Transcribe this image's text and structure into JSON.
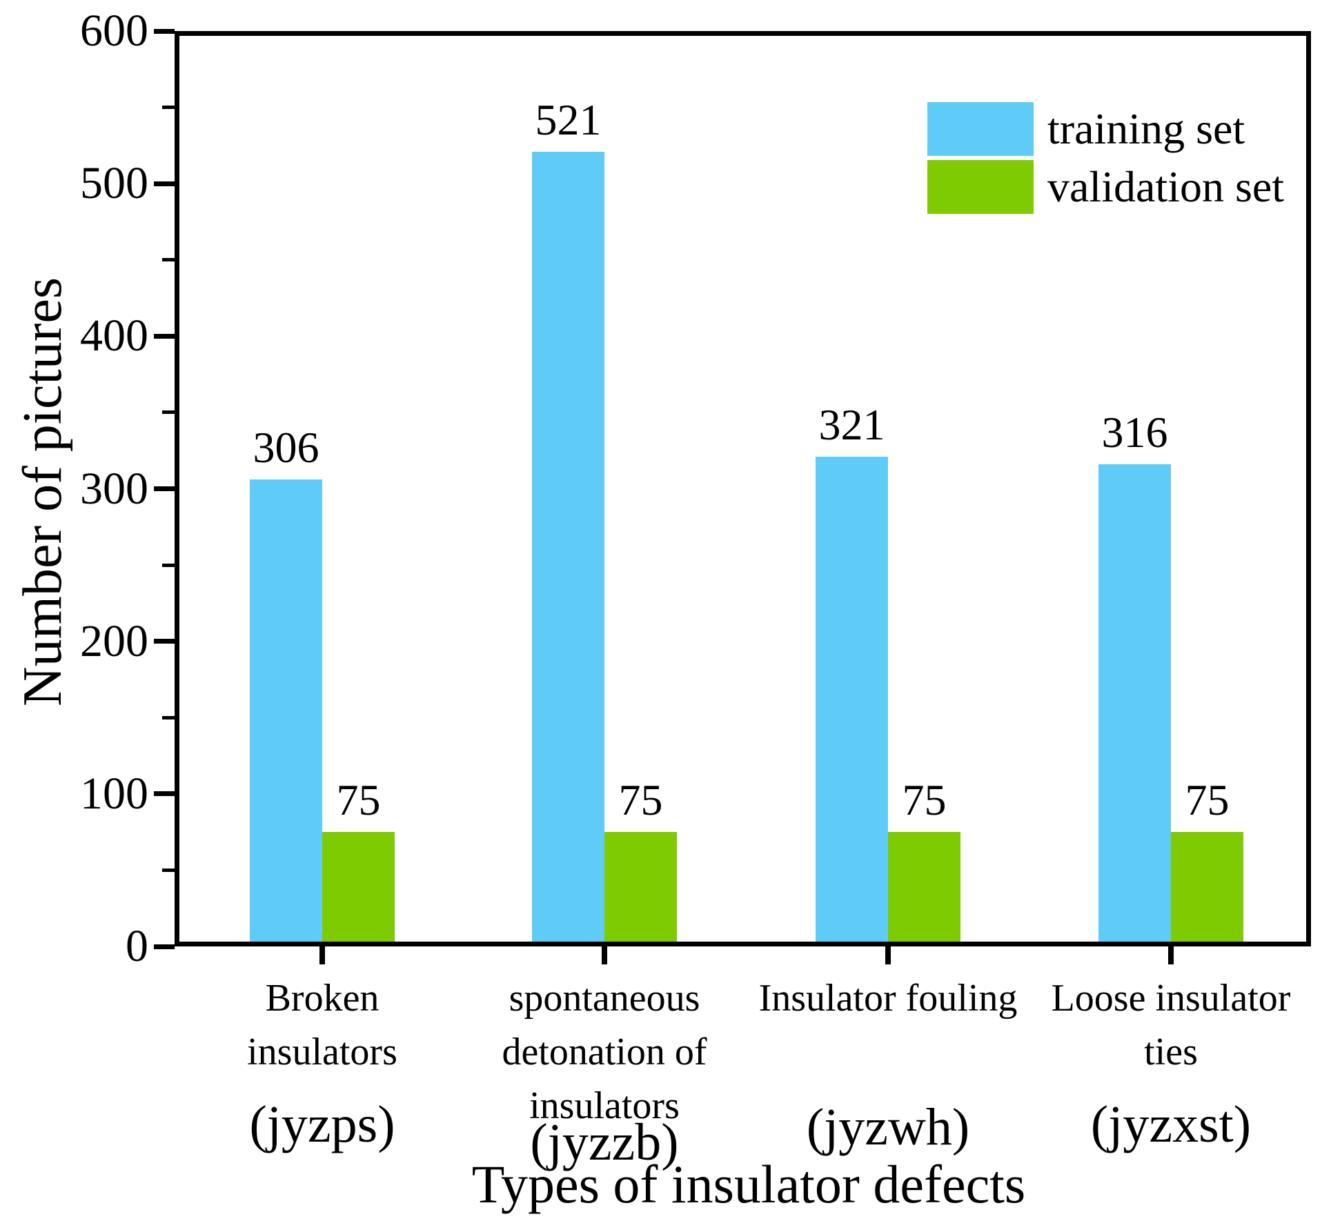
{
  "chart_data": {
    "type": "bar",
    "title": "",
    "xlabel": "Types of insulator defects",
    "ylabel": "Number of pictures",
    "ylim": [
      0,
      600
    ],
    "y_major_step": 100,
    "y_minor_step": 50,
    "grid": false,
    "legend_position": "top-right-inside",
    "categories": [
      {
        "name_lines": [
          "Broken",
          "insulators"
        ],
        "code": "(jyzps)"
      },
      {
        "name_lines": [
          "spontaneous",
          "detonation of",
          "insulators"
        ],
        "code": "(jyzzb)"
      },
      {
        "name_lines": [
          "Insulator fouling"
        ],
        "code": "(jyzwh)"
      },
      {
        "name_lines": [
          "Loose insulator",
          "ties"
        ],
        "code": "(jyzxst)"
      }
    ],
    "series": [
      {
        "name": "training set",
        "color": "#5FCCF8",
        "values": [
          306,
          521,
          321,
          316
        ]
      },
      {
        "name": "validation set",
        "color": "#7DCB00",
        "values": [
          75,
          75,
          75,
          75
        ]
      }
    ],
    "bar_value_labels": [
      [
        "306",
        "521",
        "321",
        "316"
      ],
      [
        "75",
        "75",
        "75",
        "75"
      ]
    ]
  },
  "colors": {
    "training_set": "#5FCCF8",
    "validation_set": "#7DCB00",
    "axis": "#000000",
    "background": "#FFFFFF"
  }
}
